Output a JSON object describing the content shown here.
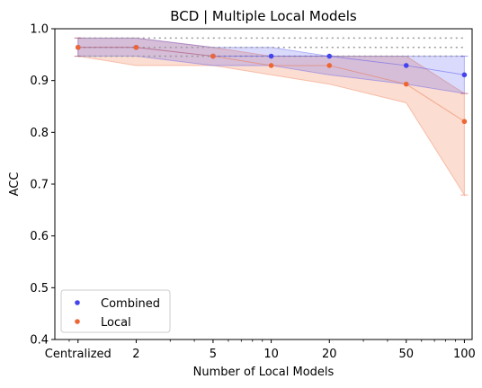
{
  "chart_data": {
    "type": "line",
    "title": "BCD | Multiple Local Models",
    "xlabel": "Number of Local Models",
    "ylabel": "ACC",
    "x_scale": "log",
    "x_ticks": [
      {
        "x": 1,
        "label": "Centralized"
      },
      {
        "x": 2,
        "label": "2"
      },
      {
        "x": 5,
        "label": "5"
      },
      {
        "x": 10,
        "label": "10"
      },
      {
        "x": 20,
        "label": "20"
      },
      {
        "x": 50,
        "label": "50"
      },
      {
        "x": 100,
        "label": "100"
      }
    ],
    "ylim": [
      0.4,
      1.0
    ],
    "y_ticks": [
      0.4,
      0.5,
      0.6,
      0.7,
      0.8,
      0.9,
      1.0
    ],
    "reference_lines": [
      0.947,
      0.964,
      0.982
    ],
    "legend_position": "lower-left",
    "grid": false,
    "series": [
      {
        "name": "Combined",
        "color": "#4444ee",
        "x": [
          1,
          2,
          5,
          10,
          20,
          50,
          100
        ],
        "y": [
          0.964,
          0.964,
          0.947,
          0.947,
          0.947,
          0.929,
          0.911
        ],
        "lower": [
          0.947,
          0.947,
          0.929,
          0.929,
          0.911,
          0.893,
          0.875
        ],
        "upper": [
          0.982,
          0.982,
          0.964,
          0.964,
          0.947,
          0.947,
          0.947
        ]
      },
      {
        "name": "Local",
        "color": "#ee6633",
        "x": [
          1,
          2,
          5,
          10,
          20,
          50,
          100
        ],
        "y": [
          0.964,
          0.964,
          0.947,
          0.929,
          0.929,
          0.893,
          0.821
        ],
        "lower": [
          0.947,
          0.929,
          0.929,
          0.911,
          0.893,
          0.857,
          0.679
        ],
        "upper": [
          0.982,
          0.982,
          0.964,
          0.947,
          0.947,
          0.947,
          0.875
        ]
      }
    ]
  }
}
